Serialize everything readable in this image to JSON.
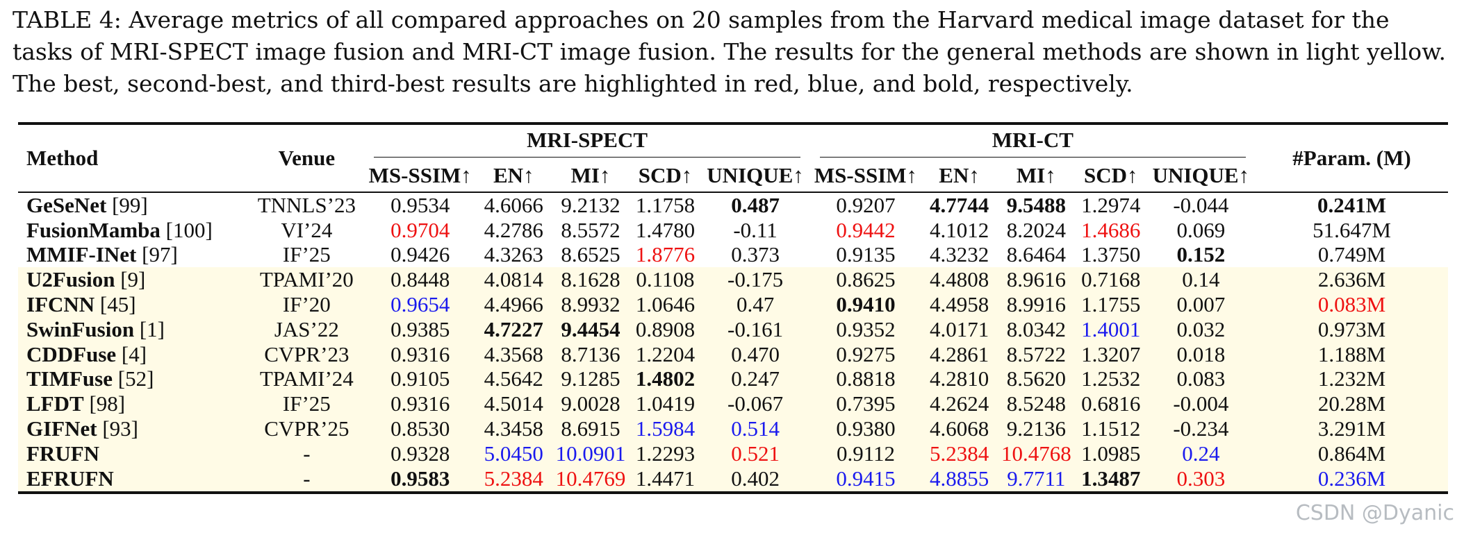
{
  "caption": "TABLE 4: Average metrics of all compared approaches on 20 samples from the Harvard medical image dataset for the tasks of MRI-SPECT image fusion and MRI-CT image fusion. The results for the general methods are shown in light yellow. The best, second-best, and third-best results are highlighted in red, blue, and bold, respectively.",
  "headers": {
    "method": "Method",
    "venue": "Venue",
    "group1": "MRI-SPECT",
    "group2": "MRI-CT",
    "params": "#Param. (M)",
    "metrics": [
      "MS-SSIM↑",
      "EN↑",
      "MI↑",
      "SCD↑",
      "UNIQUE↑"
    ]
  },
  "highlight_colors": {
    "best": "#ee1111",
    "second": "#1a1aee",
    "general_bg": "#fffbe6"
  },
  "rows": [
    {
      "name": "GeSeNet",
      "ref": "[99]",
      "venue": "TNNLS’23",
      "general": false,
      "cells": [
        [
          "0.9534",
          ""
        ],
        [
          "4.6066",
          ""
        ],
        [
          "9.2132",
          ""
        ],
        [
          "1.1758",
          ""
        ],
        [
          "0.487",
          "b"
        ],
        [
          "0.9207",
          ""
        ],
        [
          "4.7744",
          "b"
        ],
        [
          "9.5488",
          "b"
        ],
        [
          "1.2974",
          ""
        ],
        [
          "-0.044",
          ""
        ],
        [
          "0.241M",
          "b"
        ]
      ]
    },
    {
      "name": "FusionMamba",
      "ref": "[100]",
      "venue": "VI’24",
      "general": false,
      "cells": [
        [
          "0.9704",
          "red"
        ],
        [
          "4.2786",
          ""
        ],
        [
          "8.5572",
          ""
        ],
        [
          "1.4780",
          ""
        ],
        [
          "-0.11",
          ""
        ],
        [
          "0.9442",
          "red"
        ],
        [
          "4.1012",
          ""
        ],
        [
          "8.2024",
          ""
        ],
        [
          "1.4686",
          "red"
        ],
        [
          "0.069",
          ""
        ],
        [
          "51.647M",
          ""
        ]
      ]
    },
    {
      "name": "MMIF-INet",
      "ref": "[97]",
      "venue": "IF’25",
      "general": false,
      "cells": [
        [
          "0.9426",
          ""
        ],
        [
          "4.3263",
          ""
        ],
        [
          "8.6525",
          ""
        ],
        [
          "1.8776",
          "red"
        ],
        [
          "0.373",
          ""
        ],
        [
          "0.9135",
          ""
        ],
        [
          "4.3232",
          ""
        ],
        [
          "8.6464",
          ""
        ],
        [
          "1.3750",
          ""
        ],
        [
          "0.152",
          "b"
        ],
        [
          "0.749M",
          ""
        ]
      ]
    },
    {
      "name": "U2Fusion",
      "ref": "[9]",
      "venue": "TPAMI’20",
      "general": true,
      "cells": [
        [
          "0.8448",
          ""
        ],
        [
          "4.0814",
          ""
        ],
        [
          "8.1628",
          ""
        ],
        [
          "0.1108",
          ""
        ],
        [
          "-0.175",
          ""
        ],
        [
          "0.8625",
          ""
        ],
        [
          "4.4808",
          ""
        ],
        [
          "8.9616",
          ""
        ],
        [
          "0.7168",
          ""
        ],
        [
          "0.14",
          ""
        ],
        [
          "2.636M",
          ""
        ]
      ]
    },
    {
      "name": "IFCNN",
      "ref": "[45]",
      "venue": "IF’20",
      "general": true,
      "cells": [
        [
          "0.9654",
          "blue"
        ],
        [
          "4.4966",
          ""
        ],
        [
          "8.9932",
          ""
        ],
        [
          "1.0646",
          ""
        ],
        [
          "0.47",
          ""
        ],
        [
          "0.9410",
          "b"
        ],
        [
          "4.4958",
          ""
        ],
        [
          "8.9916",
          ""
        ],
        [
          "1.1755",
          ""
        ],
        [
          "0.007",
          ""
        ],
        [
          "0.083M",
          "red"
        ]
      ]
    },
    {
      "name": "SwinFusion",
      "ref": "[1]",
      "venue": "JAS’22",
      "general": true,
      "cells": [
        [
          "0.9385",
          ""
        ],
        [
          "4.7227",
          "b"
        ],
        [
          "9.4454",
          "b"
        ],
        [
          "0.8908",
          ""
        ],
        [
          "-0.161",
          ""
        ],
        [
          "0.9352",
          ""
        ],
        [
          "4.0171",
          ""
        ],
        [
          "8.0342",
          ""
        ],
        [
          "1.4001",
          "blue"
        ],
        [
          "0.032",
          ""
        ],
        [
          "0.973M",
          ""
        ]
      ]
    },
    {
      "name": "CDDFuse",
      "ref": "[4]",
      "venue": "CVPR’23",
      "general": true,
      "cells": [
        [
          "0.9316",
          ""
        ],
        [
          "4.3568",
          ""
        ],
        [
          "8.7136",
          ""
        ],
        [
          "1.2204",
          ""
        ],
        [
          "0.470",
          ""
        ],
        [
          "0.9275",
          ""
        ],
        [
          "4.2861",
          ""
        ],
        [
          "8.5722",
          ""
        ],
        [
          "1.3207",
          ""
        ],
        [
          "0.018",
          ""
        ],
        [
          "1.188M",
          ""
        ]
      ]
    },
    {
      "name": "TIMFuse",
      "ref": "[52]",
      "venue": "TPAMI’24",
      "general": true,
      "cells": [
        [
          "0.9105",
          ""
        ],
        [
          "4.5642",
          ""
        ],
        [
          "9.1285",
          ""
        ],
        [
          "1.4802",
          "b"
        ],
        [
          "0.247",
          ""
        ],
        [
          "0.8818",
          ""
        ],
        [
          "4.2810",
          ""
        ],
        [
          "8.5620",
          ""
        ],
        [
          "1.2532",
          ""
        ],
        [
          "0.083",
          ""
        ],
        [
          "1.232M",
          ""
        ]
      ]
    },
    {
      "name": "LFDT",
      "ref": "[98]",
      "venue": "IF’25",
      "general": true,
      "cells": [
        [
          "0.9316",
          ""
        ],
        [
          "4.5014",
          ""
        ],
        [
          "9.0028",
          ""
        ],
        [
          "1.0419",
          ""
        ],
        [
          "-0.067",
          ""
        ],
        [
          "0.7395",
          ""
        ],
        [
          "4.2624",
          ""
        ],
        [
          "8.5248",
          ""
        ],
        [
          "0.6816",
          ""
        ],
        [
          "-0.004",
          ""
        ],
        [
          "20.28M",
          ""
        ]
      ]
    },
    {
      "name": "GIFNet",
      "ref": "[93]",
      "venue": "CVPR’25",
      "general": true,
      "cells": [
        [
          "0.8530",
          ""
        ],
        [
          "4.3458",
          ""
        ],
        [
          "8.6915",
          ""
        ],
        [
          "1.5984",
          "blue"
        ],
        [
          "0.514",
          "blue"
        ],
        [
          "0.9380",
          ""
        ],
        [
          "4.6068",
          ""
        ],
        [
          "9.2136",
          ""
        ],
        [
          "1.1512",
          ""
        ],
        [
          "-0.234",
          ""
        ],
        [
          "3.291M",
          ""
        ]
      ]
    },
    {
      "name": "FRUFN",
      "ref": "",
      "venue": "-",
      "general": true,
      "cells": [
        [
          "0.9328",
          ""
        ],
        [
          "5.0450",
          "blue"
        ],
        [
          "10.0901",
          "blue"
        ],
        [
          "1.2293",
          ""
        ],
        [
          "0.521",
          "red"
        ],
        [
          "0.9112",
          ""
        ],
        [
          "5.2384",
          "red"
        ],
        [
          "10.4768",
          "red"
        ],
        [
          "1.0985",
          ""
        ],
        [
          "0.24",
          "blue"
        ],
        [
          "0.864M",
          ""
        ]
      ]
    },
    {
      "name": "EFRUFN",
      "ref": "",
      "venue": "-",
      "general": true,
      "cells": [
        [
          "0.9583",
          "b"
        ],
        [
          "5.2384",
          "red"
        ],
        [
          "10.4769",
          "red"
        ],
        [
          "1.4471",
          ""
        ],
        [
          "0.402",
          ""
        ],
        [
          "0.9415",
          "blue"
        ],
        [
          "4.8855",
          "blue"
        ],
        [
          "9.7711",
          "blue"
        ],
        [
          "1.3487",
          "b"
        ],
        [
          "0.303",
          "red"
        ],
        [
          "0.236M",
          "blue"
        ]
      ]
    }
  ],
  "watermark": "CSDN @Dyanic"
}
